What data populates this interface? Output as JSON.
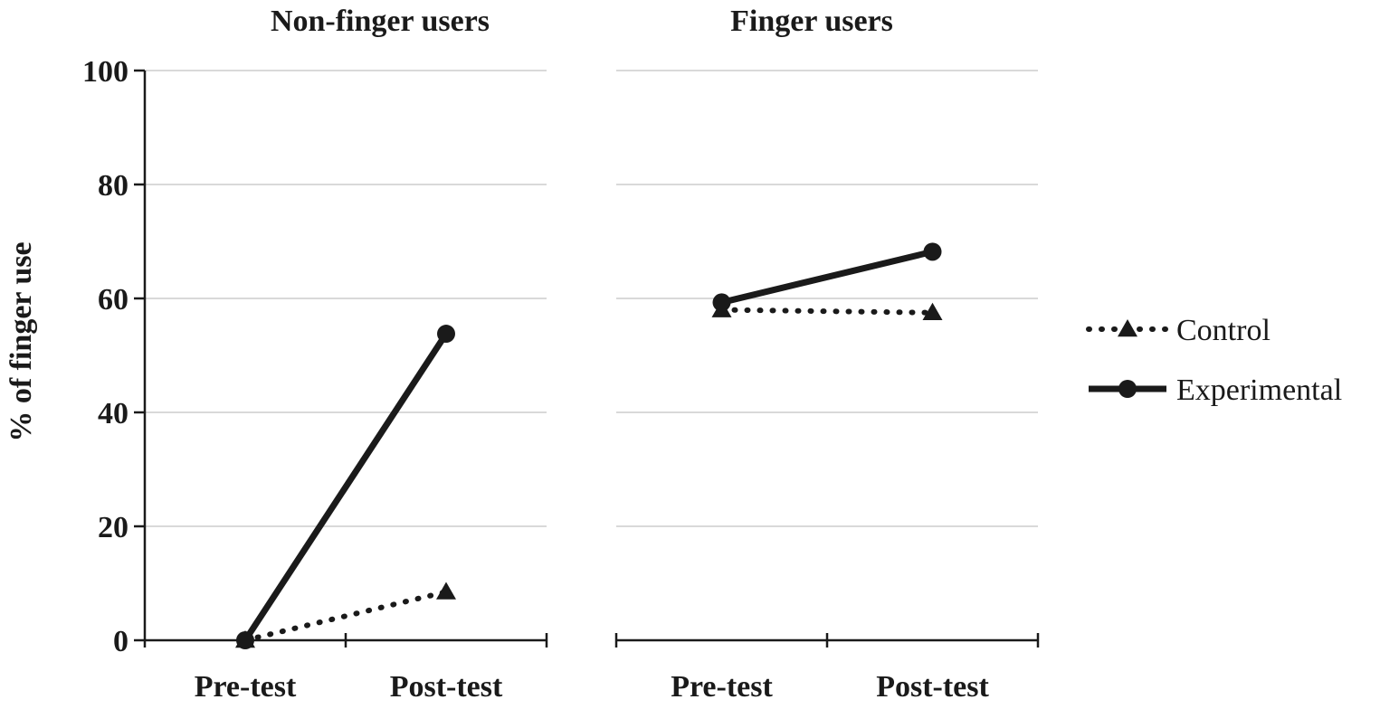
{
  "chart_data": {
    "type": "line",
    "ylabel": "% of finger use",
    "ylim": [
      0,
      100
    ],
    "yticks": [
      0,
      20,
      40,
      60,
      80,
      100
    ],
    "grid": true,
    "legend_position": "right",
    "colors": {
      "line": "#1a1a1a",
      "grid": "#d9d9d9"
    },
    "legend": [
      {
        "name": "Control",
        "style": "dotted",
        "marker": "triangle"
      },
      {
        "name": "Experimental",
        "style": "solid",
        "marker": "circle"
      }
    ],
    "panels": [
      {
        "title": "Non-finger users",
        "categories": [
          "Pre-test",
          "Post-test"
        ],
        "series": [
          {
            "name": "Control",
            "values": [
              0,
              8.5
            ]
          },
          {
            "name": "Experimental",
            "values": [
              0,
              53.8
            ]
          }
        ]
      },
      {
        "title": "Finger users",
        "categories": [
          "Pre-test",
          "Post-test"
        ],
        "series": [
          {
            "name": "Control",
            "values": [
              58,
              57.5
            ]
          },
          {
            "name": "Experimental",
            "values": [
              59.3,
              68.2
            ]
          }
        ]
      }
    ]
  }
}
